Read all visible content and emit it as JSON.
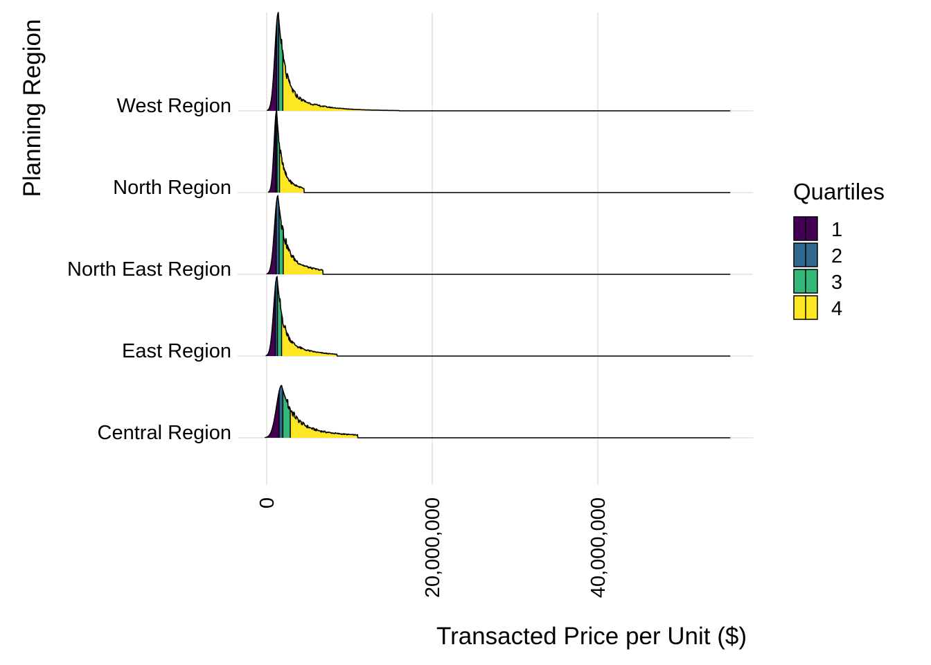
{
  "chart_data": {
    "type": "ridgeline",
    "xlabel": "Transacted Price per Unit ($)",
    "ylabel": "Planning Region",
    "x_ticks": [
      0,
      20000000,
      40000000
    ],
    "x_tick_labels": [
      "0",
      "20,000,000",
      "40,000,000"
    ],
    "xlim": [
      0,
      56000000
    ],
    "grid": true,
    "legend": {
      "title": "Quartiles",
      "placement": "right",
      "entries": [
        {
          "label": "1",
          "color": "#440154"
        },
        {
          "label": "2",
          "color": "#31688E"
        },
        {
          "label": "3",
          "color": "#35B779"
        },
        {
          "label": "4",
          "color": "#FDE725"
        }
      ]
    },
    "categories": [
      "Central Region",
      "East Region",
      "North East Region",
      "North Region",
      "West Region"
    ],
    "series": [
      {
        "name": "Central Region",
        "peak": 1800000,
        "width_left": 900000,
        "tail": 2200000,
        "tail_end": 11000000,
        "height": 0.64,
        "quartiles": [
          1500000,
          1950000,
          2850000
        ]
      },
      {
        "name": "East Region",
        "peak": 1250000,
        "width_left": 600000,
        "tail": 1100000,
        "tail_end": 8500000,
        "height": 0.97,
        "quartiles": [
          1050000,
          1300000,
          1800000
        ]
      },
      {
        "name": "North East Region",
        "peak": 1350000,
        "width_left": 600000,
        "tail": 1300000,
        "tail_end": 6800000,
        "height": 0.96,
        "quartiles": [
          1150000,
          1500000,
          2000000
        ]
      },
      {
        "name": "North Region",
        "peak": 1200000,
        "width_left": 450000,
        "tail": 800000,
        "tail_end": 4500000,
        "height": 1.0,
        "quartiles": [
          1100000,
          1250000,
          1550000
        ]
      },
      {
        "name": "West Region",
        "peak": 1400000,
        "width_left": 600000,
        "tail": 1200000,
        "tail_end": 16000000,
        "height": 1.2,
        "quartiles": [
          1200000,
          1450000,
          1950000
        ]
      }
    ],
    "series_end": 56000000
  }
}
